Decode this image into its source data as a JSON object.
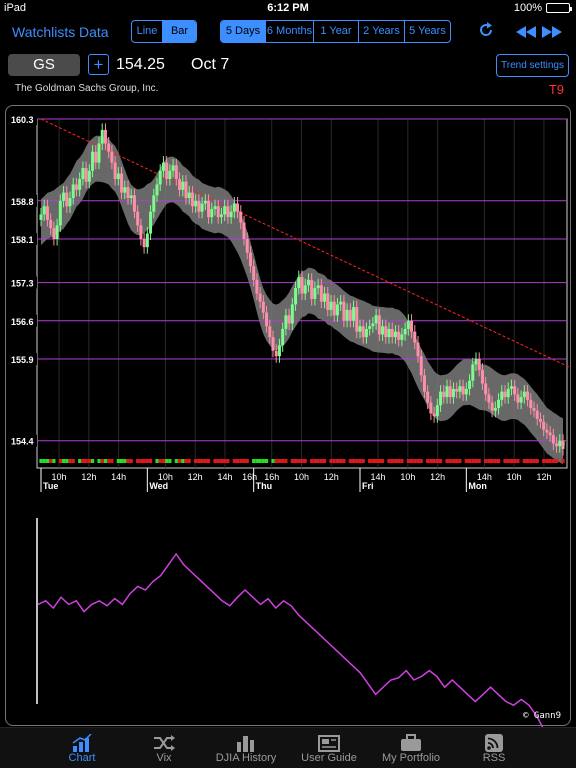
{
  "status": {
    "device": "iPad",
    "time": "6:12 PM",
    "battery": "100%",
    "battery_level": 1.0
  },
  "toolbar": {
    "watchlists": "Watchlists",
    "data": "Data",
    "chart_types": [
      {
        "label": "Line",
        "active": false
      },
      {
        "label": "Bar",
        "active": true
      }
    ],
    "ranges": [
      {
        "label": "5 Days",
        "active": true
      },
      {
        "label": "6 Months",
        "active": false
      },
      {
        "label": "1 Year",
        "active": false
      },
      {
        "label": "2 Years",
        "active": false
      },
      {
        "label": "5 Years",
        "active": false
      }
    ],
    "refresh_icon": "refresh-icon",
    "back_icon": "rewind-icon",
    "forward_icon": "fast-forward-icon"
  },
  "quote": {
    "symbol": "GS",
    "add_label": "+",
    "price": "154.25",
    "date": "Oct 7",
    "trend_settings": "Trend settings",
    "company": "The Goldman Sachs Group, Inc.",
    "tag": "T9"
  },
  "colors": {
    "accent": "#3d8eff",
    "up": "#7cfc8c",
    "down": "#ff8fa8",
    "band": "#7a7a7a",
    "level": "#b040d0",
    "trend": "#ff2020",
    "indicator": "#d040e0"
  },
  "chart_data": {
    "type": "bar",
    "ylabels": [
      "160.3",
      "158.8",
      "158.1",
      "157.3",
      "156.6",
      "155.9",
      "154.4"
    ],
    "levels": [
      160.3,
      158.8,
      158.1,
      157.3,
      156.6,
      155.9,
      154.4
    ],
    "ylim": [
      153.9,
      160.3
    ],
    "time_labels": [
      "10h",
      "12h",
      "14h",
      "10h",
      "12h",
      "14h",
      "16h",
      "10h",
      "12h",
      "14h",
      "10h",
      "12h",
      "14h",
      "10h",
      "12h",
      "14h"
    ],
    "day_labels": [
      "Tue",
      "Wed",
      "Thu",
      "Fri",
      "Mon"
    ],
    "session_bounds": [
      0,
      33,
      66,
      99,
      132,
      165
    ],
    "closes": [
      158.55,
      158.7,
      158.45,
      158.3,
      158.1,
      158.35,
      158.8,
      158.95,
      158.7,
      158.85,
      159.1,
      159.0,
      159.2,
      159.4,
      159.15,
      159.35,
      159.7,
      159.5,
      159.85,
      160.1,
      159.85,
      159.7,
      159.5,
      159.2,
      159.3,
      158.95,
      159.05,
      158.85,
      158.9,
      158.6,
      158.35,
      158.1,
      157.95,
      158.2,
      158.6,
      158.9,
      159.1,
      159.35,
      159.5,
      159.2,
      159.35,
      159.45,
      159.2,
      159.0,
      159.15,
      158.85,
      158.95,
      158.7,
      158.8,
      158.6,
      158.75,
      158.8,
      158.5,
      158.65,
      158.7,
      158.5,
      158.55,
      158.7,
      158.5,
      158.6,
      158.75,
      158.6,
      158.4,
      158.1,
      157.85,
      157.6,
      157.35,
      157.1,
      156.95,
      156.75,
      156.5,
      156.3,
      156.05,
      155.95,
      156.15,
      156.45,
      156.7,
      156.55,
      156.9,
      157.2,
      157.4,
      157.1,
      157.25,
      157.35,
      157.0,
      157.2,
      157.25,
      156.95,
      157.1,
      156.8,
      156.95,
      156.7,
      156.9,
      156.95,
      156.6,
      156.8,
      156.6,
      156.85,
      156.4,
      156.5,
      156.3,
      156.45,
      156.5,
      156.55,
      156.7,
      156.35,
      156.5,
      156.3,
      156.45,
      156.3,
      156.4,
      156.25,
      156.35,
      156.45,
      156.6,
      156.4,
      156.2,
      155.95,
      155.6,
      155.3,
      155.1,
      154.9,
      154.85,
      155.05,
      155.3,
      155.2,
      155.4,
      155.2,
      155.35,
      155.3,
      155.4,
      155.25,
      155.35,
      155.5,
      155.8,
      155.9,
      155.7,
      155.45,
      155.25,
      155.1,
      154.95,
      155.0,
      155.15,
      155.3,
      155.2,
      155.35,
      155.4,
      155.25,
      155.1,
      155.2,
      155.3,
      155.15,
      155.0,
      154.95,
      154.8,
      154.75,
      154.6,
      154.55,
      154.5,
      154.35,
      154.3,
      154.4,
      154.25
    ],
    "trendline": [
      [
        0,
        160.3
      ],
      [
        164,
        155.75
      ]
    ],
    "bar_signal": [
      1,
      1,
      1,
      0,
      1,
      1,
      0,
      1,
      1,
      0,
      0,
      1,
      1,
      0,
      0,
      0,
      1,
      1,
      1,
      0,
      1,
      0,
      0,
      0,
      1,
      1,
      1,
      0,
      0,
      0,
      0,
      0,
      0,
      0,
      0,
      0,
      1,
      0,
      0,
      1,
      1,
      1,
      1,
      0,
      1,
      0,
      0,
      0,
      0,
      0,
      0,
      0,
      0,
      0,
      0,
      0,
      0,
      0,
      0,
      0,
      0,
      0,
      0,
      0,
      0,
      0,
      1,
      1,
      1,
      1,
      1,
      1,
      1,
      0,
      0,
      0,
      0,
      0,
      0,
      0,
      0,
      0,
      0,
      0,
      0,
      0,
      0,
      0,
      0,
      0,
      0,
      0,
      0,
      0,
      0,
      0,
      0,
      0,
      0,
      0,
      0,
      0,
      0,
      0,
      0,
      0,
      0,
      0,
      0,
      0,
      0,
      0,
      0,
      0,
      0,
      0,
      0,
      0,
      0,
      0,
      0,
      0,
      0,
      0,
      0,
      0,
      0,
      0,
      0,
      0,
      0,
      0,
      0,
      0,
      0,
      0,
      0,
      0,
      0,
      0,
      0,
      0,
      0,
      0,
      0,
      0,
      0,
      0,
      0,
      0,
      0,
      0,
      0,
      0,
      0,
      0,
      0,
      0,
      0,
      0,
      0,
      0,
      0,
      0,
      0
    ],
    "indicator": [
      0.3,
      0.35,
      0.25,
      0.4,
      0.3,
      0.35,
      0.2,
      0.3,
      0.35,
      0.28,
      0.38,
      0.3,
      0.45,
      0.55,
      0.5,
      0.62,
      0.7,
      0.85,
      1.0,
      0.85,
      0.75,
      0.65,
      0.55,
      0.45,
      0.35,
      0.28,
      0.4,
      0.5,
      0.4,
      0.3,
      0.38,
      0.25,
      0.35,
      0.28,
      0.15,
      0.05,
      -0.05,
      -0.15,
      -0.25,
      -0.35,
      -0.45,
      -0.55,
      -0.65,
      -0.8,
      -0.95,
      -0.85,
      -0.75,
      -0.72,
      -0.62,
      -0.75,
      -0.7,
      -0.62,
      -0.7,
      -0.85,
      -0.75,
      -0.85,
      -0.95,
      -1.05,
      -0.95,
      -0.85,
      -0.95,
      -1.05,
      -1.1,
      -1.02,
      -1.1,
      -1.25,
      -1.45,
      -1.65
    ],
    "watermark": "© Gann9"
  },
  "tabs": [
    {
      "label": "Chart",
      "icon": "chart-icon",
      "active": true
    },
    {
      "label": "Vix",
      "icon": "shuffle-icon",
      "active": false
    },
    {
      "label": "DJIA History",
      "icon": "bar-chart-icon",
      "active": false
    },
    {
      "label": "User Guide",
      "icon": "newspaper-icon",
      "active": false
    },
    {
      "label": "My Portfolio",
      "icon": "briefcase-icon",
      "active": false
    },
    {
      "label": "RSS",
      "icon": "rss-icon",
      "active": false
    }
  ]
}
